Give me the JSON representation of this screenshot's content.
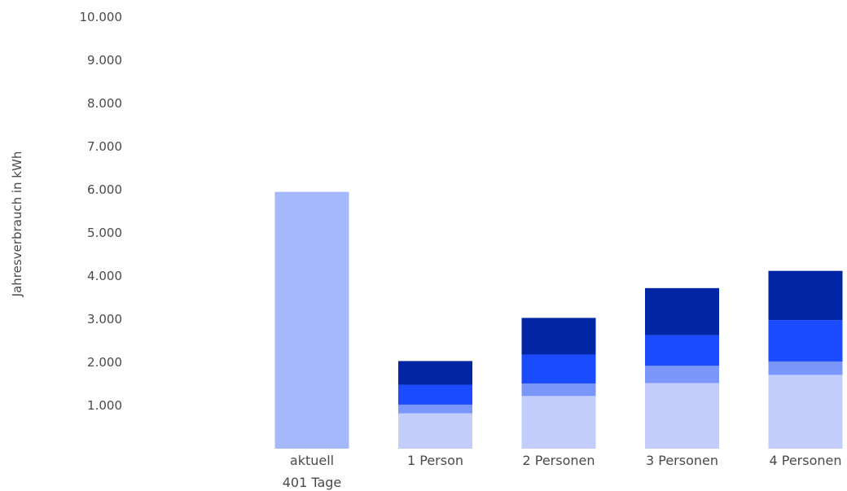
{
  "chart_data": {
    "type": "bar",
    "stacked": true,
    "ylabel": "Jahresverbrauch in kWh",
    "ylim": [
      0,
      10000
    ],
    "yticks": [
      "1.000",
      "2.000",
      "3.000",
      "4.000",
      "5.000",
      "6.000",
      "7.000",
      "8.000",
      "9.000",
      "10.000"
    ],
    "yticks_values": [
      1000,
      2000,
      3000,
      4000,
      5000,
      6000,
      7000,
      8000,
      9000,
      10000
    ],
    "grid": false,
    "categories": [
      "aktuell",
      "1 Person",
      "2 Personen",
      "3 Personen",
      "4 Personen"
    ],
    "category_sublabels": [
      "401 Tage",
      "",
      "",
      "",
      ""
    ],
    "series": [
      {
        "color": "#c2cdfc",
        "values": [
          0,
          820,
          1220,
          1520,
          1710
        ]
      },
      {
        "color": "#7a96fa",
        "values": [
          0,
          200,
          290,
          400,
          310
        ]
      },
      {
        "color": "#1a4bff",
        "values": [
          0,
          460,
          670,
          710,
          960
        ]
      },
      {
        "color": "#0026a6",
        "values": [
          0,
          550,
          850,
          1090,
          1140
        ]
      }
    ],
    "current": {
      "color": "#a5b8fb",
      "values": [
        5950,
        0,
        0,
        0,
        0
      ]
    }
  }
}
